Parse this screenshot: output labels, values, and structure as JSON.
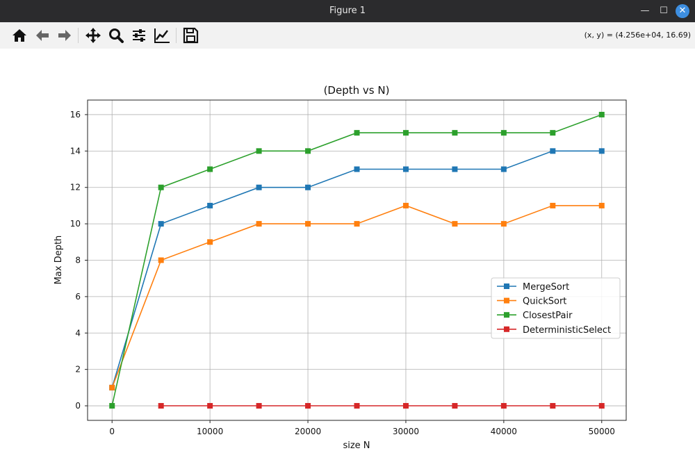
{
  "window": {
    "title": "Figure 1"
  },
  "toolbar": {
    "buttons": [
      "home-icon",
      "back-arrow-icon",
      "forward-arrow-icon",
      "pan-icon",
      "zoom-icon",
      "configure-subplots-icon",
      "edit-axes-icon",
      "save-icon"
    ],
    "coords": "(x, y) = (4.256e+04, 16.69)"
  },
  "chart_data": {
    "type": "line",
    "title": "(Depth vs N)",
    "xlabel": "size N",
    "ylabel": "Max Depth",
    "xlim": [
      -2500,
      52500
    ],
    "ylim": [
      -0.8,
      16.8
    ],
    "xticks": [
      0,
      10000,
      20000,
      30000,
      40000,
      50000
    ],
    "yticks": [
      0,
      2,
      4,
      6,
      8,
      10,
      12,
      14,
      16
    ],
    "grid": true,
    "legend_position": "center-right",
    "marker": "square",
    "series": [
      {
        "name": "MergeSort",
        "color": "#1f77b4",
        "x": [
          0,
          5000,
          10000,
          15000,
          20000,
          25000,
          30000,
          35000,
          40000,
          45000,
          50000
        ],
        "y": [
          1,
          10,
          11,
          12,
          12,
          13,
          13,
          13,
          13,
          14,
          14
        ]
      },
      {
        "name": "QuickSort",
        "color": "#ff7f0e",
        "x": [
          0,
          5000,
          10000,
          15000,
          20000,
          25000,
          30000,
          35000,
          40000,
          45000,
          50000
        ],
        "y": [
          1,
          8,
          9,
          10,
          10,
          10,
          11,
          10,
          10,
          11,
          11
        ]
      },
      {
        "name": "ClosestPair",
        "color": "#2ca02c",
        "x": [
          0,
          5000,
          10000,
          15000,
          20000,
          25000,
          30000,
          35000,
          40000,
          45000,
          50000
        ],
        "y": [
          0,
          12,
          13,
          14,
          14,
          15,
          15,
          15,
          15,
          15,
          16
        ]
      },
      {
        "name": "DeterministicSelect",
        "color": "#d62728",
        "x": [
          5000,
          10000,
          15000,
          20000,
          25000,
          30000,
          35000,
          40000,
          45000,
          50000
        ],
        "y": [
          0,
          0,
          0,
          0,
          0,
          0,
          0,
          0,
          0,
          0
        ]
      }
    ]
  }
}
